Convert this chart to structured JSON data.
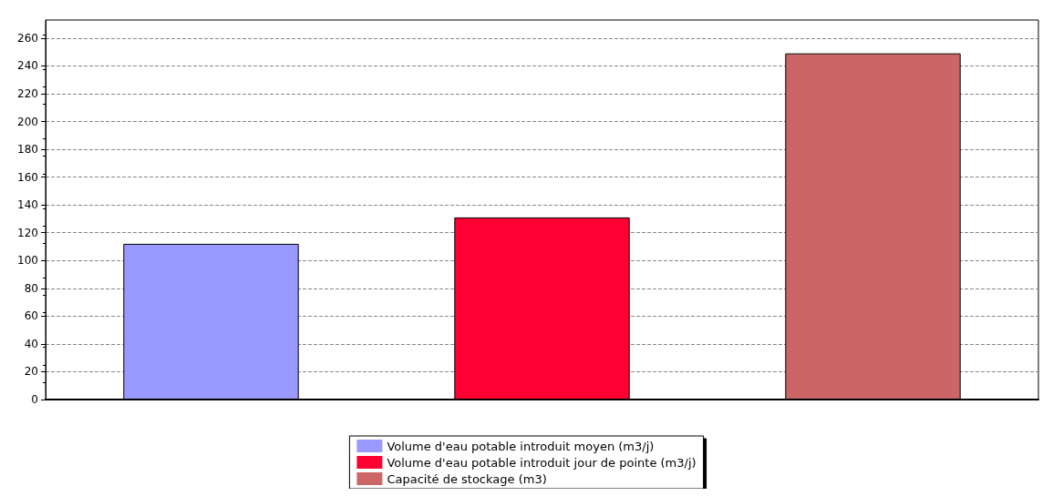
{
  "chart_data": {
    "type": "bar",
    "categories": [
      null,
      null,
      null
    ],
    "series": [
      {
        "name": "Volume d'eau potable introduit moyen (m3/j)",
        "color": "#9999ff",
        "values": [
          112,
          null,
          null
        ]
      },
      {
        "name": "Volume d'eau potable introduit jour de pointe (m3/j)",
        "color": "#ff0033",
        "values": [
          null,
          131,
          null
        ]
      },
      {
        "name": "Capacité de stockage (m3)",
        "color": "#cc6666",
        "values": [
          null,
          null,
          249
        ]
      }
    ],
    "ylim": [
      0,
      273
    ],
    "yticks": [
      0,
      20,
      40,
      60,
      80,
      100,
      120,
      140,
      160,
      180,
      200,
      220,
      240,
      260
    ],
    "grid": "y",
    "legend": "bottom"
  }
}
